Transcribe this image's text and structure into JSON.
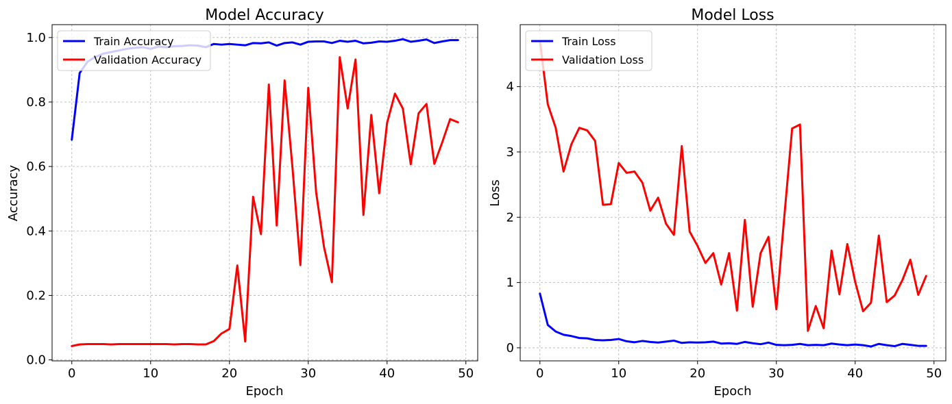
{
  "chart_data": [
    {
      "type": "line",
      "title": "Model Accuracy",
      "xlabel": "Epoch",
      "ylabel": "Accuracy",
      "xlim": [
        -2.5,
        51.5
      ],
      "ylim": [
        -0.003,
        1.04
      ],
      "xticks": [
        0,
        10,
        20,
        30,
        40,
        50
      ],
      "xtick_labels": [
        "0",
        "10",
        "20",
        "30",
        "40",
        "50"
      ],
      "yticks": [
        0.0,
        0.2,
        0.4,
        0.6,
        0.8,
        1.0
      ],
      "ytick_labels": [
        "0.0",
        "0.2",
        "0.4",
        "0.6",
        "0.8",
        "1.0"
      ],
      "grid": true,
      "legend_position": "top-left",
      "x": [
        0,
        1,
        2,
        3,
        4,
        5,
        6,
        7,
        8,
        9,
        10,
        11,
        12,
        13,
        14,
        15,
        16,
        17,
        18,
        19,
        20,
        21,
        22,
        23,
        24,
        25,
        26,
        27,
        28,
        29,
        30,
        31,
        32,
        33,
        34,
        35,
        36,
        37,
        38,
        39,
        40,
        41,
        42,
        43,
        44,
        45,
        46,
        47,
        48,
        49
      ],
      "series": [
        {
          "name": "Train Accuracy",
          "color": "#0000ff",
          "values": [
            0.683,
            0.89,
            0.925,
            0.94,
            0.95,
            0.955,
            0.96,
            0.965,
            0.968,
            0.97,
            0.965,
            0.972,
            0.97,
            0.973,
            0.974,
            0.976,
            0.975,
            0.97,
            0.98,
            0.978,
            0.98,
            0.978,
            0.976,
            0.983,
            0.982,
            0.985,
            0.975,
            0.983,
            0.985,
            0.978,
            0.987,
            0.988,
            0.988,
            0.983,
            0.99,
            0.987,
            0.99,
            0.982,
            0.984,
            0.988,
            0.987,
            0.99,
            0.995,
            0.987,
            0.99,
            0.994,
            0.983,
            0.988,
            0.992,
            0.992
          ]
        },
        {
          "name": "Validation Accuracy",
          "color": "#ff0000",
          "values": [
            0.043,
            0.048,
            0.049,
            0.049,
            0.049,
            0.048,
            0.049,
            0.049,
            0.049,
            0.049,
            0.049,
            0.049,
            0.049,
            0.048,
            0.049,
            0.049,
            0.048,
            0.048,
            0.058,
            0.082,
            0.096,
            0.293,
            0.057,
            0.506,
            0.39,
            0.854,
            0.417,
            0.867,
            0.596,
            0.294,
            0.844,
            0.52,
            0.35,
            0.241,
            0.939,
            0.78,
            0.932,
            0.45,
            0.76,
            0.517,
            0.735,
            0.826,
            0.78,
            0.607,
            0.765,
            0.794,
            0.608,
            0.675,
            0.747,
            0.737
          ]
        }
      ]
    },
    {
      "type": "line",
      "title": "Model Loss",
      "xlabel": "Epoch",
      "ylabel": "Loss",
      "xlim": [
        -2.5,
        51.5
      ],
      "ylim": [
        -0.2,
        4.95
      ],
      "xticks": [
        0,
        10,
        20,
        30,
        40,
        50
      ],
      "xtick_labels": [
        "0",
        "10",
        "20",
        "30",
        "40",
        "50"
      ],
      "yticks": [
        0,
        1,
        2,
        3,
        4
      ],
      "ytick_labels": [
        "0",
        "1",
        "2",
        "3",
        "4"
      ],
      "grid": true,
      "legend_position": "top-left",
      "x": [
        0,
        1,
        2,
        3,
        4,
        5,
        6,
        7,
        8,
        9,
        10,
        11,
        12,
        13,
        14,
        15,
        16,
        17,
        18,
        19,
        20,
        21,
        22,
        23,
        24,
        25,
        26,
        27,
        28,
        29,
        30,
        31,
        32,
        33,
        34,
        35,
        36,
        37,
        38,
        39,
        40,
        41,
        42,
        43,
        44,
        45,
        46,
        47,
        48,
        49
      ],
      "series": [
        {
          "name": "Train Loss",
          "color": "#0000ff",
          "values": [
            0.83,
            0.35,
            0.25,
            0.2,
            0.18,
            0.15,
            0.145,
            0.12,
            0.115,
            0.12,
            0.135,
            0.1,
            0.085,
            0.105,
            0.09,
            0.08,
            0.095,
            0.11,
            0.075,
            0.085,
            0.08,
            0.085,
            0.095,
            0.065,
            0.07,
            0.06,
            0.09,
            0.07,
            0.055,
            0.08,
            0.045,
            0.04,
            0.045,
            0.06,
            0.04,
            0.045,
            0.04,
            0.065,
            0.05,
            0.04,
            0.05,
            0.04,
            0.02,
            0.06,
            0.04,
            0.025,
            0.06,
            0.045,
            0.03,
            0.03
          ]
        },
        {
          "name": "Validation Loss",
          "color": "#ff0000",
          "values": [
            4.7,
            3.73,
            3.37,
            2.7,
            3.12,
            3.37,
            3.33,
            3.17,
            2.19,
            2.2,
            2.83,
            2.68,
            2.7,
            2.53,
            2.1,
            2.3,
            1.9,
            1.73,
            3.09,
            1.78,
            1.56,
            1.3,
            1.45,
            0.97,
            1.45,
            0.57,
            1.96,
            0.63,
            1.45,
            1.7,
            0.59,
            2.0,
            3.36,
            3.42,
            0.26,
            0.64,
            0.3,
            1.49,
            0.82,
            1.59,
            1.01,
            0.56,
            0.69,
            1.72,
            0.7,
            0.8,
            1.04,
            1.35,
            0.81,
            1.1
          ]
        }
      ]
    }
  ]
}
